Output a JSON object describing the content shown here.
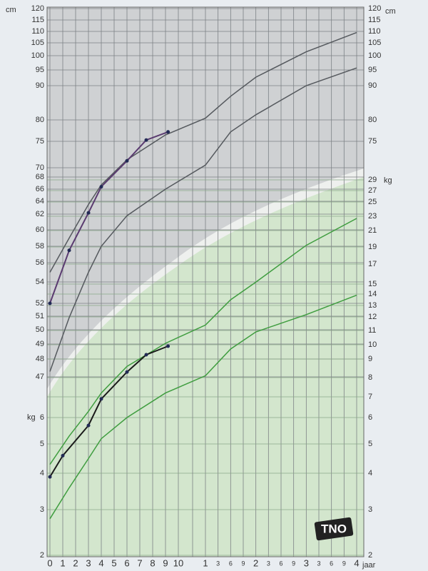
{
  "chart_data": {
    "type": "line",
    "xticks": [
      0,
      1,
      2,
      3,
      4,
      5,
      6,
      7,
      8,
      9,
      10,
      {
        "value": 12,
        "label": "1"
      },
      {
        "value": 15,
        "label": "3"
      },
      {
        "value": 18,
        "label": "6"
      },
      {
        "value": 21,
        "label": "9"
      },
      {
        "value": 24,
        "label": "2"
      },
      {
        "value": 27,
        "label": "3"
      },
      {
        "value": 30,
        "label": "6"
      },
      {
        "value": 33,
        "label": "9"
      },
      {
        "value": 36,
        "label": "3"
      },
      {
        "value": 39,
        "label": "3"
      },
      {
        "value": 42,
        "label": "6"
      },
      {
        "value": 45,
        "label": "9"
      },
      {
        "value": 48,
        "label": "4"
      }
    ],
    "xlim": [
      0,
      48
    ],
    "x_label": "jaar",
    "y_unit": "cm",
    "ylim": [
      47,
      120
    ],
    "yticks": [
      120,
      115,
      110,
      105,
      100,
      95,
      90,
      80,
      75,
      70,
      68,
      66,
      64,
      62,
      60,
      58,
      56,
      54,
      52,
      51,
      50,
      49,
      48,
      47
    ],
    "y_right_ticks": [
      120,
      115,
      110,
      105,
      100,
      95,
      90,
      80,
      75
    ],
    "y2_unit": "kg",
    "y2lim": [
      2,
      29
    ],
    "y2ticks": [
      29,
      27,
      25,
      23,
      21,
      19,
      17,
      15,
      14,
      13,
      12,
      11,
      10,
      9,
      8,
      7,
      6,
      5,
      4,
      3,
      2
    ],
    "y2_left_ticks": [
      6,
      5,
      4,
      3,
      2
    ],
    "grid": true,
    "logo": "TNO",
    "series": [
      {
        "color": "#55595e",
        "x": [
          0,
          1.5,
          3,
          4,
          6,
          9,
          12,
          18,
          24,
          36,
          48
        ],
        "values": [
          55,
          59,
          63.5,
          66.7,
          71.5,
          76.5,
          80.5,
          86.9,
          92.7,
          101.5,
          109.5
        ]
      },
      {
        "color": "#55595e",
        "x": [
          0,
          1.5,
          3,
          4,
          6,
          9,
          12,
          18,
          24,
          36,
          48
        ],
        "values": [
          47.3,
          50.9,
          55,
          58,
          61.8,
          66,
          70.5,
          77.2,
          81.5,
          90,
          95.7
        ]
      },
      {
        "color": "#3f9d3f",
        "axis": "y2",
        "x": [
          0,
          1.5,
          3,
          4,
          6,
          9,
          12,
          18,
          24,
          36,
          48
        ],
        "values": [
          4.3,
          5.3,
          6.3,
          7.2,
          8.6,
          10.1,
          11.4,
          13.5,
          15.2,
          19.2,
          22.7
        ]
      },
      {
        "color": "#3f9d3f",
        "axis": "y2",
        "x": [
          0,
          1.5,
          3,
          4,
          6,
          9,
          12,
          18,
          24,
          36,
          48
        ],
        "values": [
          2.8,
          3.6,
          4.5,
          5.2,
          6,
          7.2,
          8.1,
          9.7,
          10.9,
          12.2,
          13.9
        ]
      },
      {
        "color": "#5a3b70",
        "markers": true,
        "x": [
          0,
          1.5,
          3,
          4,
          6,
          7.5,
          9.2
        ],
        "values": [
          52,
          57.5,
          62.2,
          66.4,
          71.3,
          75.3,
          77.2
        ]
      },
      {
        "color": "#1a1a1a",
        "axis": "y2",
        "markers": true,
        "x": [
          0,
          1,
          3,
          4,
          6,
          7.5,
          9.2
        ],
        "values": [
          3.9,
          4.6,
          5.7,
          6.9,
          8.3,
          9.3,
          9.9
        ]
      }
    ]
  }
}
